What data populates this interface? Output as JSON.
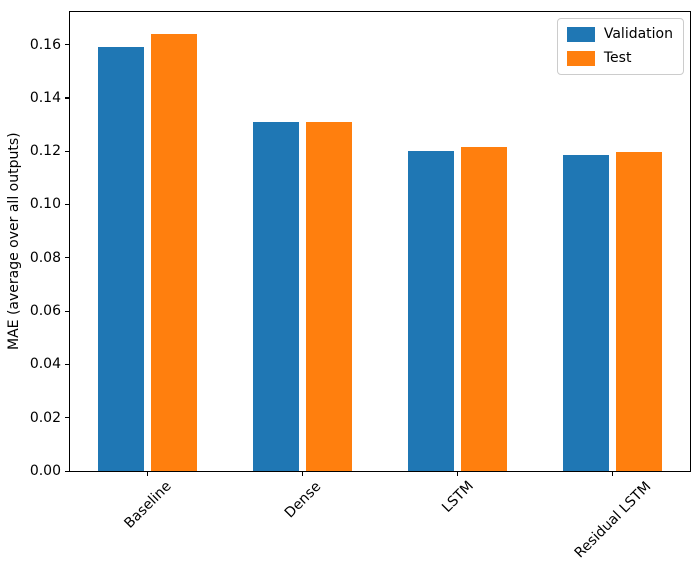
{
  "chart_data": {
    "type": "bar",
    "title": "",
    "xlabel": "",
    "ylabel": "MAE (average over all outputs)",
    "categories": [
      "Baseline",
      "Dense",
      "LSTM",
      "Residual LSTM"
    ],
    "series": [
      {
        "name": "Validation",
        "color": "#1f77b4",
        "values": [
          0.159,
          0.131,
          0.1202,
          0.1186
        ]
      },
      {
        "name": "Test",
        "color": "#ff7f0e",
        "values": [
          0.164,
          0.131,
          0.1217,
          0.1196
        ]
      }
    ],
    "ylim": [
      0,
      0.1722
    ],
    "yticks": [
      0.0,
      0.02,
      0.04,
      0.06,
      0.08,
      0.1,
      0.12,
      0.14,
      0.16
    ],
    "ytick_decimals": 2,
    "xtick_rotation_deg": 45,
    "grid": false,
    "legend_position": "upper right",
    "bar_width_frac": 0.3,
    "bar_offset_frac": 0.172
  }
}
